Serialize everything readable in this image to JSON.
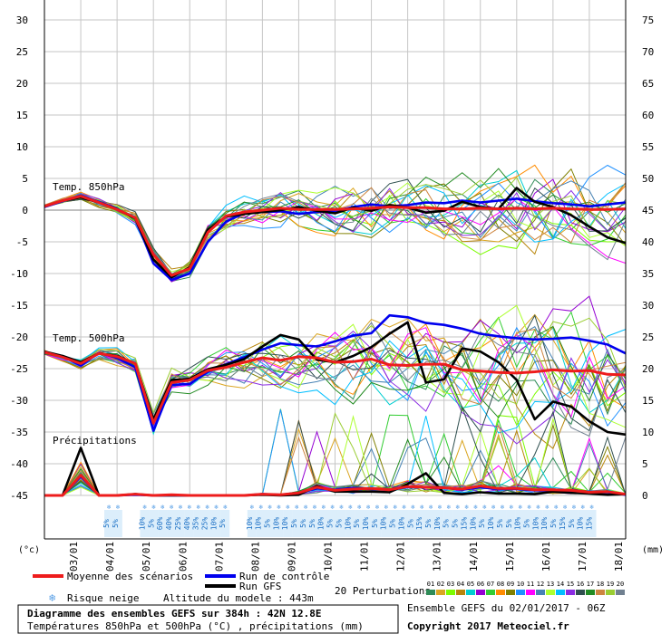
{
  "chart_data": {
    "type": "line",
    "left_axis": {
      "ticks": [
        30,
        25,
        20,
        15,
        10,
        5,
        0,
        -5,
        -10,
        -15,
        -20,
        -25,
        -30,
        -35,
        -40,
        -45
      ],
      "unit": "(°c)",
      "range": [
        -45,
        30
      ]
    },
    "right_axis": {
      "ticks": [
        75,
        70,
        65,
        60,
        55,
        50,
        45,
        40,
        35,
        30,
        25,
        20,
        15,
        10,
        5,
        0
      ],
      "unit": "(mm)",
      "range": [
        0,
        75
      ]
    },
    "x_ticks": [
      "03/01",
      "04/01",
      "05/01",
      "06/01",
      "07/01",
      "08/01",
      "09/01",
      "10/01",
      "11/01",
      "12/01",
      "13/01",
      "14/01",
      "15/01",
      "16/01",
      "17/01",
      "18/01"
    ],
    "grid": true,
    "panel_labels": {
      "t850": "Temp. 850hPa",
      "t500": "Temp. 500hPa",
      "precip": "Précipitations"
    },
    "series": [
      {
        "name": "Moyenne des scénarios",
        "color": "#ee1c1c",
        "t850": [
          0.6,
          1.5,
          2.2,
          1.2,
          0.1,
          -1.2,
          -7,
          -10.3,
          -9.2,
          -3.5,
          -0.9,
          -0.3,
          0,
          0.3,
          0.1,
          0.1,
          0.1,
          0.2,
          0.3,
          0.5,
          0.4,
          0.4,
          0.2,
          0.2,
          0.3,
          0.2,
          0.3,
          0.2,
          0.3,
          0.2,
          0.1,
          0.1,
          0.2
        ],
        "t500": [
          -22.4,
          -23.2,
          -24.2,
          -22.6,
          -23.1,
          -24.2,
          -33.6,
          -27.2,
          -26.8,
          -25.3,
          -24.8,
          -24,
          -23.3,
          -23.7,
          -23.1,
          -23.3,
          -24,
          -23.9,
          -23.5,
          -24.4,
          -24.5,
          -24.3,
          -24.3,
          -25.2,
          -25.4,
          -25.6,
          -25.7,
          -25.5,
          -25.2,
          -25.4,
          -25.3,
          -25.9,
          -26
        ],
        "precip": [
          0,
          0,
          3.2,
          0,
          0,
          0.2,
          0,
          0.1,
          0,
          0,
          0,
          0,
          0.2,
          0.1,
          0.4,
          1.3,
          0.8,
          1.0,
          1.1,
          0.9,
          1.4,
          1.3,
          1.2,
          1.0,
          1.5,
          1.1,
          1.1,
          0.9,
          0.9,
          0.8,
          0.5,
          0.6,
          0.2
        ]
      },
      {
        "name": "Run de contrôle",
        "color": "#0000ee",
        "t850": [
          0.5,
          1.4,
          2.3,
          1.3,
          0.2,
          -1.3,
          -8.4,
          -11,
          -10,
          -5,
          -1.8,
          -0.5,
          -0.3,
          -0.2,
          -0.6,
          -0.3,
          -0.1,
          0.5,
          0.9,
          0.6,
          0.8,
          1.2,
          1.1,
          1.5,
          1.2,
          1.5,
          1.8,
          1.4,
          1.1,
          0.9,
          0.6,
          0.9,
          1.2
        ],
        "t500": [
          -22.4,
          -23.1,
          -24.5,
          -22.5,
          -23.3,
          -24.8,
          -34.8,
          -27.6,
          -27.4,
          -25.5,
          -24.3,
          -23.2,
          -22,
          -21,
          -21.3,
          -21.5,
          -20.7,
          -19.8,
          -19.4,
          -16.6,
          -16.9,
          -17.8,
          -18.1,
          -18.7,
          -19.5,
          -19.9,
          -20.2,
          -20.4,
          -20.3,
          -20.1,
          -20.6,
          -21.2,
          -22.6
        ],
        "precip": [
          0,
          0,
          3.0,
          0,
          0,
          0.1,
          0,
          0,
          0,
          0,
          0,
          0,
          0.2,
          0.1,
          0.4,
          1.1,
          0.9,
          1.2,
          1.0,
          0.9,
          1.3,
          1.3,
          1.2,
          0.9,
          1.3,
          1.0,
          1.0,
          0.8,
          0.8,
          0.7,
          0.5,
          0.5,
          0.1
        ]
      },
      {
        "name": "Run GFS",
        "color": "#000000",
        "t850": [
          0.6,
          1.5,
          2,
          1.2,
          0.1,
          -1.3,
          -7.8,
          -10.6,
          -9,
          -3.1,
          -1,
          -0.6,
          -0.3,
          0,
          0.5,
          -0.1,
          -0.5,
          0.4,
          -0.1,
          0.8,
          0.4,
          -0.4,
          -0.1,
          1.3,
          0.5,
          0.2,
          3.5,
          1.3,
          0.5,
          -0.8,
          -2.6,
          -4.3,
          -5.2
        ],
        "t500": [
          -22.3,
          -23,
          -24,
          -22.6,
          -23,
          -24.2,
          -33,
          -26.8,
          -26.6,
          -25.1,
          -24.4,
          -23.5,
          -21.5,
          -19.7,
          -20.4,
          -23.6,
          -24,
          -23,
          -21.6,
          -19.5,
          -17.7,
          -27.2,
          -26.7,
          -21.8,
          -22.3,
          -24,
          -26.8,
          -33,
          -30.2,
          -31,
          -33.3,
          -35,
          -35.4
        ],
        "precip": [
          0,
          0,
          7.5,
          0,
          0,
          0.2,
          0,
          0,
          0,
          0,
          0,
          0,
          0.1,
          0,
          0.1,
          1.5,
          0.6,
          0.6,
          0.6,
          0.5,
          1.8,
          3.5,
          0.4,
          0.2,
          0.5,
          0.3,
          0.3,
          0.2,
          0.6,
          0.4,
          0.3,
          0.1,
          0.2
        ]
      }
    ],
    "perturbations": {
      "count": 20,
      "labels": [
        "01",
        "02",
        "03",
        "04",
        "05",
        "06",
        "07",
        "08",
        "09",
        "10",
        "11",
        "12",
        "13",
        "14",
        "15",
        "16",
        "17",
        "18",
        "19",
        "20"
      ],
      "colors": [
        "#2e8b57",
        "#daa520",
        "#7cfc00",
        "#b8860b",
        "#00ced1",
        "#9400d3",
        "#32cd32",
        "#ff8c00",
        "#808000",
        "#1e90ff",
        "#ff00ff",
        "#4682b4",
        "#adff2f",
        "#00bfff",
        "#8a2be2",
        "#2f4f4f",
        "#228b22",
        "#cd853f",
        "#9acd32",
        "#708090"
      ]
    },
    "snow_risk": [
      "5%",
      "5%",
      "",
      "",
      "10%",
      "5%",
      "60%",
      "40%",
      "25%",
      "40%",
      "35%",
      "25%",
      "10%",
      "5%",
      "",
      "",
      "10%",
      "10%",
      "5%",
      "10%",
      "10%",
      "5%",
      "5%",
      "5%",
      "10%",
      "5%",
      "5%",
      "10%",
      "5%",
      "10%",
      "5%",
      "10%",
      "5%",
      "10%",
      "5%",
      "15%",
      "5%",
      "10%",
      "5%",
      "5%",
      "15%",
      "10%",
      "5%",
      "10%",
      "5%",
      "5%",
      "10%",
      "5%",
      "10%",
      "10%",
      "5%",
      "15%",
      "5%",
      "10%",
      "15%"
    ]
  },
  "legend": {
    "mean": "Moyenne des scénarios",
    "control": "Run de contrôle",
    "gfs": "Run GFS",
    "snow": "Risque neige",
    "altitude": "Altitude du modele : 443m",
    "perturbations": "20 Perturbations"
  },
  "footer": {
    "title": "Diagramme des ensembles GEFS sur 384h : 42N 12.8E",
    "subtitle": "Températures 850hPa et 500hPa (°C) , précipitations (mm)",
    "run": "Ensemble GEFS du 02/01/2017 - 06Z",
    "copyright": "Copyright 2017 Meteociel.fr"
  },
  "colors": {
    "grid": "#c6c6c6",
    "axis": "#000000",
    "snow": "#5aa0e6",
    "background": "#ffffff"
  }
}
